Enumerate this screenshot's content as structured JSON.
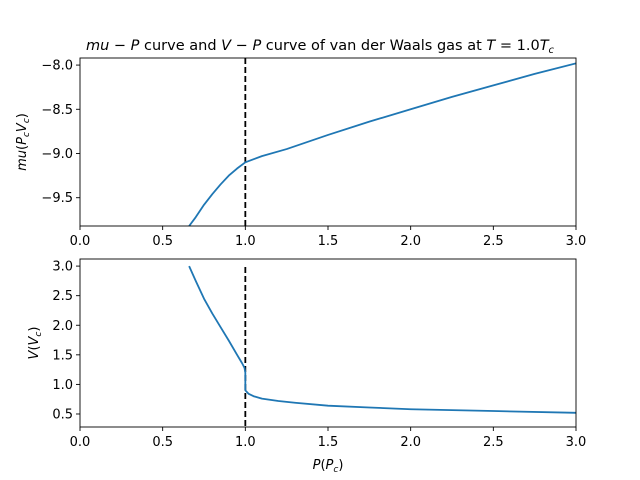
{
  "chart_data": [
    {
      "type": "line",
      "title": {
        "pre": "mu",
        "mid1": " − ",
        "p": "P",
        "mid2": " curve and ",
        "v": "V",
        "mid3": " − ",
        "p2": "P",
        "mid4": " curve of van der Waals gas at ",
        "t": "T",
        "eq": " = 1.0",
        "tc": "T",
        "sub": "c"
      },
      "ylabel": {
        "main": "mu",
        "open": "(",
        "p": "P",
        "psub": "c",
        "v": "V",
        "vsub": "c",
        "close": ")"
      },
      "xlim": [
        0,
        3
      ],
      "ylim": [
        -9.82,
        -7.92
      ],
      "xticks": [
        "0.0",
        "0.5",
        "1.0",
        "1.5",
        "2.0",
        "2.5",
        "3.0"
      ],
      "xtick_values": [
        0,
        0.5,
        1.0,
        1.5,
        2.0,
        2.5,
        3.0
      ],
      "yticks": [
        "−9.5",
        "−9.0",
        "−8.5",
        "−8.0"
      ],
      "ytick_values": [
        -9.5,
        -9.0,
        -8.5,
        -8.0
      ],
      "vline_x": 1.0,
      "series": [
        {
          "color": "#1f77b4",
          "x": [
            0.66,
            0.7,
            0.75,
            0.8,
            0.85,
            0.9,
            0.95,
            1.0,
            1.1,
            1.25,
            1.5,
            1.75,
            2.0,
            2.25,
            2.5,
            2.75,
            3.0
          ],
          "y": [
            -9.82,
            -9.72,
            -9.58,
            -9.46,
            -9.35,
            -9.25,
            -9.17,
            -9.1,
            -9.03,
            -8.95,
            -8.79,
            -8.64,
            -8.5,
            -8.36,
            -8.23,
            -8.1,
            -7.98
          ]
        }
      ]
    },
    {
      "type": "line",
      "xlabel": {
        "p": "P",
        "open": "(",
        "pc": "P",
        "sub": "c",
        "close": ")"
      },
      "ylabel": {
        "v": "V",
        "open": "(",
        "vc": "V",
        "sub": "c",
        "close": ")"
      },
      "xlim": [
        0,
        3
      ],
      "ylim": [
        0.28,
        3.12
      ],
      "xticks": [
        "0.0",
        "0.5",
        "1.0",
        "1.5",
        "2.0",
        "2.5",
        "3.0"
      ],
      "xtick_values": [
        0,
        0.5,
        1.0,
        1.5,
        2.0,
        2.5,
        3.0
      ],
      "yticks": [
        "0.5",
        "1.0",
        "1.5",
        "2.0",
        "2.5",
        "3.0"
      ],
      "ytick_values": [
        0.5,
        1.0,
        1.5,
        2.0,
        2.5,
        3.0
      ],
      "vline_x": 1.0,
      "series": [
        {
          "color": "#1f77b4",
          "x": [
            0.66,
            0.7,
            0.75,
            0.8,
            0.85,
            0.9,
            0.95,
            0.98,
            0.995,
            1.0,
            1.0,
            1.0,
            1.02,
            1.05,
            1.1,
            1.2,
            1.3,
            1.5,
            1.75,
            2.0,
            2.5,
            3.0
          ],
          "y": [
            3.0,
            2.75,
            2.45,
            2.2,
            1.97,
            1.74,
            1.5,
            1.36,
            1.28,
            1.2,
            1.0,
            0.9,
            0.84,
            0.8,
            0.76,
            0.72,
            0.69,
            0.64,
            0.61,
            0.58,
            0.55,
            0.52
          ]
        }
      ]
    }
  ]
}
